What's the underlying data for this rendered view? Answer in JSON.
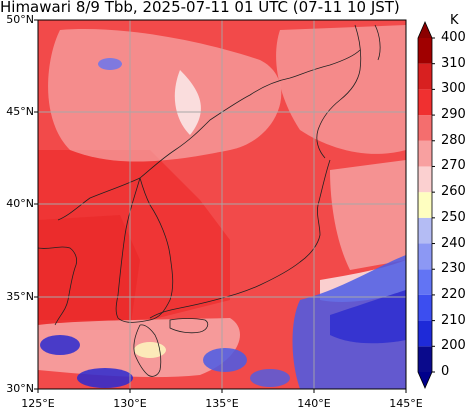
{
  "title": "Himawari 8/9 Tbb, 2025-07-11 01 UTC (07-11 10 JST)",
  "lat_labels": [
    "50°N",
    "45°N",
    "40°N",
    "35°N",
    "30°N"
  ],
  "lon_labels": [
    "125°E",
    "130°E",
    "135°E",
    "140°E",
    "145°E"
  ],
  "colorbar": {
    "unit": "K",
    "ticks": [
      "0",
      "200",
      "210",
      "220",
      "230",
      "240",
      "250",
      "260",
      "270",
      "280",
      "290",
      "300",
      "310",
      "400"
    ],
    "colors": [
      "#0a0a8c",
      "#1e2ad8",
      "#3c4ef0",
      "#6274f4",
      "#8c98f4",
      "#b4bcf4",
      "#fefec0",
      "#fbd0d0",
      "#f8a0a0",
      "#f46e6e",
      "#f03030",
      "#d82020",
      "#a00000"
    ]
  },
  "map_colors": {
    "background": "#f24a4a",
    "warm_land": "#ef3232",
    "cloud_light": "#f7a8a8",
    "cloud_white": "#fbe6e6",
    "cold_blue": "#4a5ce6",
    "cold_deep": "#2a2ad0"
  }
}
